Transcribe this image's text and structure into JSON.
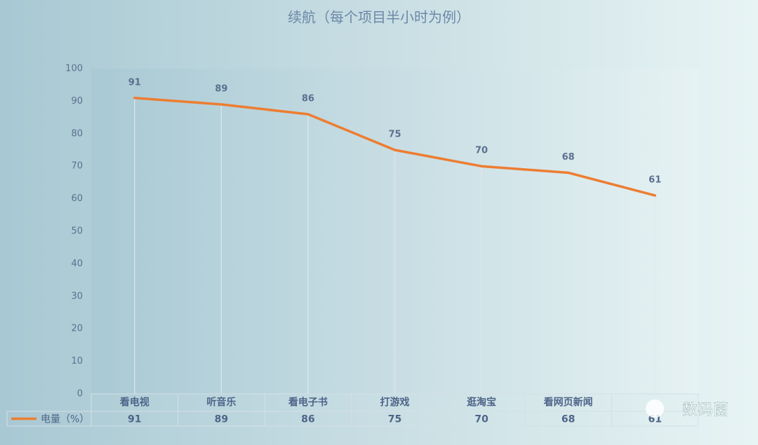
{
  "chart_data": {
    "type": "line",
    "title": "续航（每个项目半小时为例）",
    "categories": [
      "看电视",
      "听音乐",
      "看电子书",
      "打游戏",
      "逛淘宝",
      "看网页新闻",
      null
    ],
    "series": [
      {
        "name": "电量（%）",
        "color": "#ed7d31",
        "values": [
          91,
          89,
          86,
          75,
          70,
          68,
          61
        ]
      }
    ],
    "ylim": [
      0,
      100
    ],
    "yticks": [
      0,
      10,
      20,
      30,
      40,
      50,
      60,
      70,
      80,
      90,
      100
    ],
    "data_table": true,
    "drop_lines": true
  },
  "watermark": "数码菌"
}
